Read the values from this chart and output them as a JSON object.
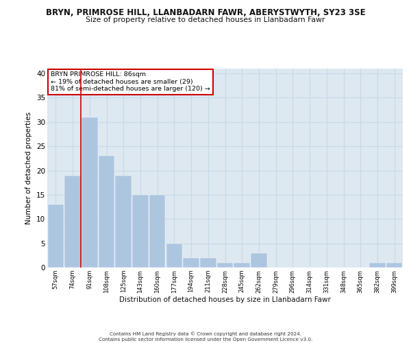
{
  "title": "BRYN, PRIMROSE HILL, LLANBADARN FAWR, ABERYSTWYTH, SY23 3SE",
  "subtitle": "Size of property relative to detached houses in Llanbadarn Fawr",
  "xlabel": "Distribution of detached houses by size in Llanbadarn Fawr",
  "ylabel": "Number of detached properties",
  "categories": [
    "57sqm",
    "74sqm",
    "91sqm",
    "108sqm",
    "125sqm",
    "143sqm",
    "160sqm",
    "177sqm",
    "194sqm",
    "211sqm",
    "228sqm",
    "245sqm",
    "262sqm",
    "279sqm",
    "296sqm",
    "314sqm",
    "331sqm",
    "348sqm",
    "365sqm",
    "382sqm",
    "399sqm"
  ],
  "values": [
    13,
    19,
    31,
    23,
    19,
    15,
    15,
    5,
    2,
    2,
    1,
    1,
    3,
    0,
    0,
    0,
    0,
    0,
    0,
    1,
    1
  ],
  "bar_color": "#adc6e0",
  "bar_edge_color": "#adc6e0",
  "grid_color": "#c8d8e8",
  "background_color": "#dde8f0",
  "vline_color": "#cc0000",
  "annotation_title": "BRYN PRIMROSE HILL: 86sqm",
  "annotation_line1": "← 19% of detached houses are smaller (29)",
  "annotation_line2": "81% of semi-detached houses are larger (120) →",
  "annotation_box_color": "#ffffff",
  "annotation_box_edge": "#cc0000",
  "footer": "Contains HM Land Registry data © Crown copyright and database right 2024.\nContains public sector information licensed under the Open Government Licence v3.0.",
  "ylim": [
    0,
    41
  ],
  "yticks": [
    0,
    5,
    10,
    15,
    20,
    25,
    30,
    35,
    40
  ]
}
